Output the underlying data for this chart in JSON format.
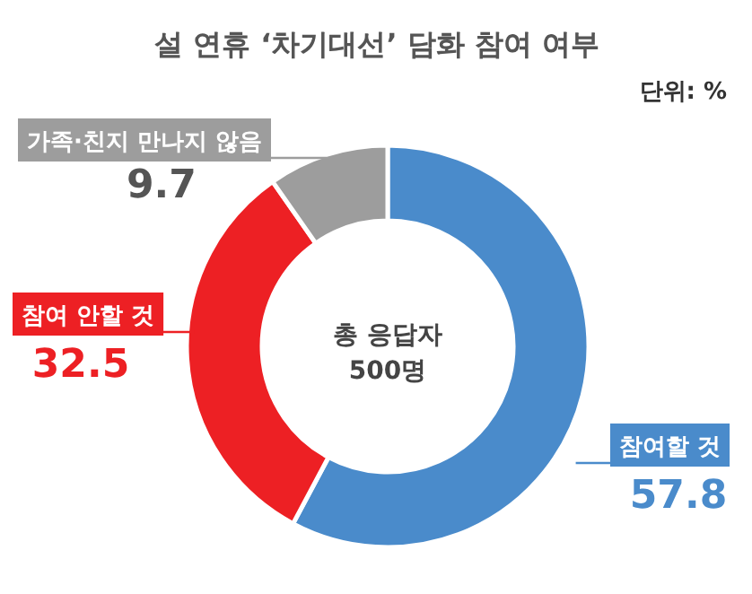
{
  "chart_data": {
    "type": "donut",
    "title": "설 연휴 ‘차기대선’ 담화 참여 여부",
    "categories": [
      "참여할 것",
      "참여 안할 것",
      "가족·친지 만나지 않음"
    ],
    "values": [
      57.8,
      32.5,
      9.7
    ],
    "colors": [
      "#4a8bcb",
      "#ed2024",
      "#9d9d9d"
    ],
    "data_labels": true,
    "annotations": [
      "단위: %",
      "총 응답자",
      "500명"
    ]
  }
}
